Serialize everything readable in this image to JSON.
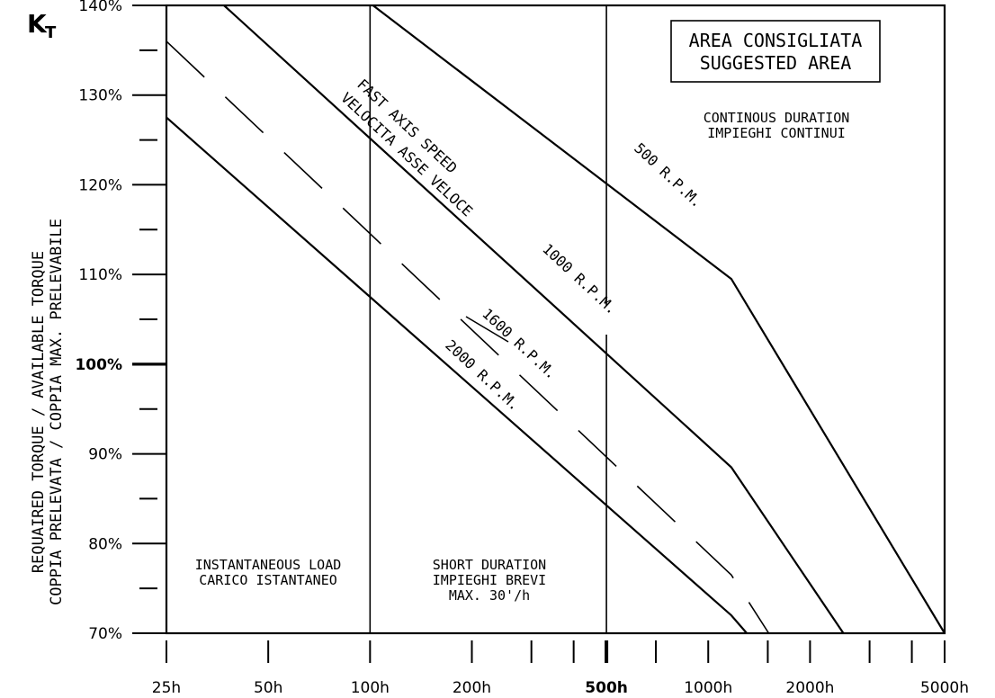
{
  "chart_data": {
    "type": "line",
    "title": "",
    "y_symbol": "K",
    "y_symbol_sub": "T",
    "ylabel": [
      "REQUAIRED TORQUE / AVAILABLE TORQUE",
      "COPPIA PRELEVATA / COPPIA MAX. PRELEVABILE"
    ],
    "xlabel": "",
    "x_scale": "log",
    "xlim": [
      25,
      5000
    ],
    "ylim": [
      70,
      140
    ],
    "grid": false,
    "y_ticks": [
      {
        "value": 140,
        "label": "140%"
      },
      {
        "value": 130,
        "label": "130%"
      },
      {
        "value": 120,
        "label": "120%"
      },
      {
        "value": 110,
        "label": "110%"
      },
      {
        "value": 100,
        "label": "100%",
        "bold": true
      },
      {
        "value": 90,
        "label": "90%"
      },
      {
        "value": 80,
        "label": "80%"
      },
      {
        "value": 70,
        "label": "70%"
      }
    ],
    "y_minor_ticks": [
      135,
      125,
      115,
      105,
      95,
      85,
      75
    ],
    "x_ticks": [
      {
        "value": 25,
        "label": "25h"
      },
      {
        "value": 50,
        "label": "50h"
      },
      {
        "value": 100,
        "label": "100h"
      },
      {
        "value": 200,
        "label": "200h"
      },
      {
        "value": 500,
        "label": "500h",
        "bold": true
      },
      {
        "value": 1000,
        "label": "1000h"
      },
      {
        "value": 2000,
        "label": "2000h"
      },
      {
        "value": 5000,
        "label": "5000h"
      }
    ],
    "x_minor_ticks": [
      300,
      400,
      700,
      1500,
      3000,
      4000
    ],
    "vertical_lines": [
      100,
      500
    ],
    "series": [
      {
        "name": "500 R.P.M.",
        "style": "solid",
        "x": [
          102,
          1170,
          5000
        ],
        "y": [
          140,
          109.5,
          70
        ]
      },
      {
        "name": "1000 R.P.M.",
        "style": "solid",
        "x": [
          37,
          1170,
          2510
        ],
        "y": [
          140,
          88.5,
          70
        ]
      },
      {
        "name": "1600 R.P.M.",
        "style": "dashed",
        "x": [
          25,
          1170,
          1510
        ],
        "y": [
          136,
          76.5,
          70
        ]
      },
      {
        "name": "2000 R.P.M.",
        "style": "solid",
        "x": [
          25,
          1170,
          1300
        ],
        "y": [
          127.5,
          72,
          70
        ]
      }
    ],
    "annotations": [
      {
        "id": "area",
        "lines": [
          "AREA CONSIGLIATA",
          "SUGGESTED AREA"
        ],
        "boxed": true
      },
      {
        "id": "continuous",
        "lines": [
          "CONTINOUS DURATION",
          "IMPIEGHI CONTINUI"
        ]
      },
      {
        "id": "instantaneous",
        "lines": [
          "INSTANTANEOUS LOAD",
          "CARICO ISTANTANEO"
        ]
      },
      {
        "id": "short",
        "lines": [
          "SHORT DURATION",
          "IMPIEGHI BREVI",
          "MAX. 30'/h"
        ]
      },
      {
        "id": "fast-axis",
        "lines": [
          "FAST AXIS SPEED",
          "VELOCITA ASSE VELOCE"
        ]
      }
    ]
  }
}
